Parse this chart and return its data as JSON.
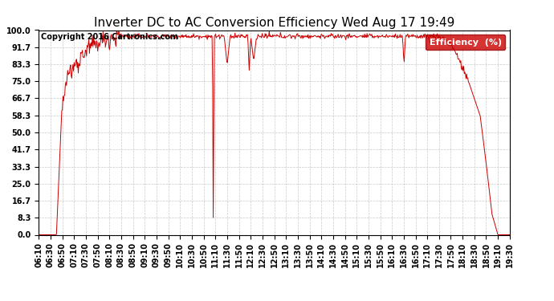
{
  "title": "Inverter DC to AC Conversion Efficiency Wed Aug 17 19:49",
  "copyright": "Copyright 2016 Cartronics.com",
  "legend_label": "Efficiency  (%)",
  "legend_bg": "#cc0000",
  "legend_fg": "#ffffff",
  "line_color": "#cc0000",
  "bg_color": "#ffffff",
  "grid_color": "#bbbbbb",
  "ylim": [
    0.0,
    100.0
  ],
  "yticks": [
    0.0,
    8.3,
    16.7,
    25.0,
    33.3,
    41.7,
    50.0,
    58.3,
    66.7,
    75.0,
    83.3,
    91.7,
    100.0
  ],
  "xtick_labels": [
    "06:10",
    "06:30",
    "06:50",
    "07:10",
    "07:30",
    "07:50",
    "08:10",
    "08:30",
    "08:50",
    "09:10",
    "09:30",
    "09:50",
    "10:10",
    "10:30",
    "10:50",
    "11:10",
    "11:30",
    "11:50",
    "12:10",
    "12:30",
    "12:50",
    "13:10",
    "13:30",
    "13:50",
    "14:10",
    "14:30",
    "14:50",
    "15:10",
    "15:30",
    "15:50",
    "16:10",
    "16:30",
    "16:50",
    "17:10",
    "17:30",
    "17:50",
    "18:10",
    "18:30",
    "18:50",
    "19:10",
    "19:30"
  ],
  "title_fontsize": 11,
  "copyright_fontsize": 7,
  "tick_fontsize": 7,
  "legend_fontsize": 8
}
